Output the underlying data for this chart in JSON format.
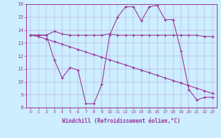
{
  "xlabel": "Windchill (Refroidissement éolien,°C)",
  "background_color": "#cceeff",
  "line_color": "#993399",
  "x_values": [
    0,
    1,
    2,
    3,
    4,
    5,
    6,
    7,
    8,
    9,
    10,
    11,
    12,
    13,
    14,
    15,
    16,
    17,
    18,
    19,
    20,
    21,
    22,
    23
  ],
  "line1": [
    13.6,
    13.6,
    13.6,
    13.9,
    13.7,
    13.6,
    13.6,
    13.6,
    13.6,
    13.6,
    13.7,
    13.6,
    13.6,
    13.6,
    13.6,
    13.6,
    13.6,
    13.6,
    13.6,
    13.6,
    13.6,
    13.6,
    13.5,
    13.5
  ],
  "line2": [
    13.6,
    13.5,
    13.3,
    13.1,
    12.9,
    12.7,
    12.5,
    12.3,
    12.1,
    11.9,
    11.7,
    11.5,
    11.3,
    11.1,
    10.9,
    10.7,
    10.5,
    10.3,
    10.1,
    9.9,
    9.7,
    9.5,
    9.3,
    9.1
  ],
  "line3": [
    13.6,
    13.6,
    13.6,
    11.7,
    10.3,
    11.1,
    10.9,
    8.3,
    8.3,
    9.8,
    13.6,
    15.0,
    15.8,
    15.8,
    14.7,
    15.8,
    15.9,
    14.8,
    14.8,
    12.4,
    9.4,
    8.6,
    8.8,
    8.8
  ],
  "ylim": [
    8,
    16
  ],
  "xlim": [
    -0.5,
    23.5
  ],
  "yticks": [
    8,
    9,
    10,
    11,
    12,
    13,
    14,
    15,
    16
  ],
  "xticks": [
    0,
    1,
    2,
    3,
    4,
    5,
    6,
    7,
    8,
    9,
    10,
    11,
    12,
    13,
    14,
    15,
    16,
    17,
    18,
    19,
    20,
    21,
    22,
    23
  ]
}
